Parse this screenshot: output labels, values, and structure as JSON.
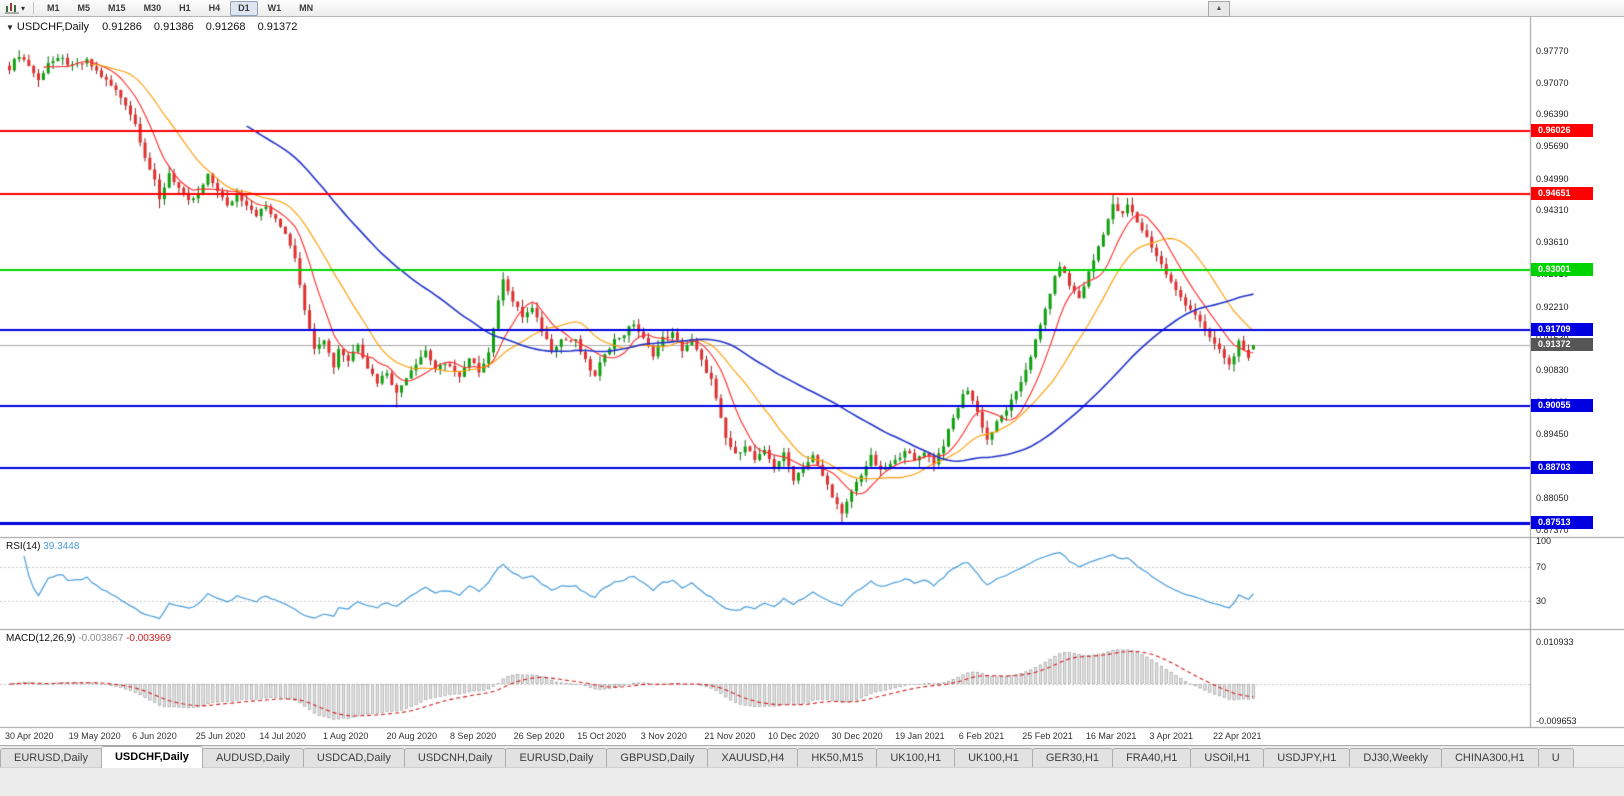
{
  "toolbar": {
    "timeframes": [
      "M1",
      "M5",
      "M15",
      "M30",
      "H1",
      "H4",
      "D1",
      "W1",
      "MN"
    ],
    "active_timeframe": "D1"
  },
  "window": {
    "collapse_marker": "▼",
    "title_symbol": "USDCHF,Daily",
    "ohlc": "0.91286 0.91386 0.91268 0.91372",
    "scroll_up_glyph": "▲"
  },
  "price_axis_ticks": [
    "0.97770",
    "0.97070",
    "0.96390",
    "0.95690",
    "0.94990",
    "0.94310",
    "0.93610",
    "0.92910",
    "0.92210",
    "0.91530",
    "0.90830",
    "0.90130",
    "0.89450",
    "0.88750",
    "0.88050",
    "0.87370"
  ],
  "levels": [
    {
      "price": 0.96026,
      "label": "0.96026",
      "color": "#ff0000",
      "width": 2
    },
    {
      "price": 0.94651,
      "label": "0.94651",
      "color": "#ff0000",
      "width": 2
    },
    {
      "price": 0.93001,
      "label": "0.93001",
      "color": "#00d400",
      "width": 2
    },
    {
      "price": 0.91709,
      "label": "0.91709",
      "color": "#0000e0",
      "width": 2
    },
    {
      "price": 0.90055,
      "label": "0.90055",
      "color": "#0000e0",
      "width": 2
    },
    {
      "price": 0.88703,
      "label": "0.88703",
      "color": "#0000e0",
      "width": 2
    },
    {
      "price": 0.87513,
      "label": "0.87513",
      "color": "#0000e0",
      "width": 3
    }
  ],
  "current_price": {
    "price": 0.91372,
    "label": "0.91372",
    "bg": "#565656"
  },
  "date_labels": [
    "30 Apr 2020",
    "19 May 2020",
    "6 Jun 2020",
    "25 Jun 2020",
    "14 Jul 2020",
    "1 Aug 2020",
    "20 Aug 2020",
    "8 Sep 2020",
    "26 Sep 2020",
    "15 Oct 2020",
    "3 Nov 2020",
    "21 Nov 2020",
    "10 Dec 2020",
    "30 Dec 2020",
    "19 Jan 2021",
    "6 Feb 2021",
    "25 Feb 2021",
    "16 Mar 2021",
    "3 Apr 2021",
    "22 Apr 2021"
  ],
  "indicators": {
    "rsi": {
      "name": "RSI(14)",
      "value": "39.3448",
      "axis": [
        "100",
        "70",
        "30"
      ],
      "guide_levels": [
        70,
        30
      ]
    },
    "macd": {
      "name": "MACD(12,26,9)",
      "value_main": "-0.003867",
      "value_signal": "-0.003969",
      "axis_max": "0.010933",
      "axis_min": "-0.009653"
    }
  },
  "tabs": [
    {
      "label": "EURUSD,Daily"
    },
    {
      "label": "USDCHF,Daily",
      "active": true
    },
    {
      "label": "AUDUSD,Daily"
    },
    {
      "label": "USDCAD,Daily"
    },
    {
      "label": "USDCNH,Daily"
    },
    {
      "label": "EURUSD,Daily"
    },
    {
      "label": "GBPUSD,Daily"
    },
    {
      "label": "XAUUSD,H4"
    },
    {
      "label": "HK50,M15"
    },
    {
      "label": "UK100,H1"
    },
    {
      "label": "UK100,H1"
    },
    {
      "label": "GER30,H1"
    },
    {
      "label": "FRA40,H1"
    },
    {
      "label": "USOil,H1"
    },
    {
      "label": "USDJPY,H1"
    },
    {
      "label": "DJ30,Weekly"
    },
    {
      "label": "CHINA300,H1"
    },
    {
      "label": "U"
    }
  ],
  "colors": {
    "up": "#0fa00f",
    "up_border": "#0a6e0a",
    "down": "#e03030",
    "down_border": "#8f1d1d",
    "rsi_line": "#4a9edd",
    "macd_hist": "#e3e3e3",
    "macd_hist_border": "#9f9f9f",
    "macd_signal": "#d22020",
    "current_line": "#aaaaaa",
    "guide_dotted": "#c8c8c8"
  },
  "chart_data": {
    "type": "candlestick",
    "symbol": "USDCHF",
    "timeframe": "Daily",
    "num_candles": 258,
    "price_anchors": [
      [
        0,
        0.974
      ],
      [
        2,
        0.9768
      ],
      [
        4,
        0.9745
      ],
      [
        6,
        0.9712
      ],
      [
        8,
        0.9752
      ],
      [
        11,
        0.9758
      ],
      [
        13,
        0.9742
      ],
      [
        16,
        0.9754
      ],
      [
        19,
        0.9722
      ],
      [
        22,
        0.969
      ],
      [
        24,
        0.9662
      ],
      [
        26,
        0.9618
      ],
      [
        28,
        0.9548
      ],
      [
        30,
        0.9492
      ],
      [
        31,
        0.9452
      ],
      [
        33,
        0.9512
      ],
      [
        35,
        0.9478
      ],
      [
        37,
        0.9448
      ],
      [
        39,
        0.9465
      ],
      [
        41,
        0.9505
      ],
      [
        43,
        0.9475
      ],
      [
        45,
        0.9438
      ],
      [
        47,
        0.9465
      ],
      [
        49,
        0.9445
      ],
      [
        51,
        0.9422
      ],
      [
        53,
        0.9438
      ],
      [
        55,
        0.9408
      ],
      [
        57,
        0.9382
      ],
      [
        59,
        0.933
      ],
      [
        60,
        0.9272
      ],
      [
        61,
        0.9218
      ],
      [
        62,
        0.917
      ],
      [
        63,
        0.9135
      ],
      [
        65,
        0.9152
      ],
      [
        66,
        0.912
      ],
      [
        67,
        0.9092
      ],
      [
        68,
        0.913
      ],
      [
        70,
        0.9105
      ],
      [
        72,
        0.9142
      ],
      [
        74,
        0.909
      ],
      [
        76,
        0.9058
      ],
      [
        78,
        0.908
      ],
      [
        80,
        0.9032
      ],
      [
        82,
        0.907
      ],
      [
        84,
        0.91
      ],
      [
        86,
        0.9126
      ],
      [
        88,
        0.9086
      ],
      [
        91,
        0.9096
      ],
      [
        93,
        0.9066
      ],
      [
        95,
        0.9106
      ],
      [
        97,
        0.9082
      ],
      [
        99,
        0.9122
      ],
      [
        101,
        0.923
      ],
      [
        102,
        0.9285
      ],
      [
        104,
        0.9232
      ],
      [
        106,
        0.92
      ],
      [
        108,
        0.9216
      ],
      [
        110,
        0.917
      ],
      [
        112,
        0.9128
      ],
      [
        114,
        0.915
      ],
      [
        117,
        0.9146
      ],
      [
        119,
        0.9102
      ],
      [
        121,
        0.9068
      ],
      [
        123,
        0.9122
      ],
      [
        125,
        0.9148
      ],
      [
        127,
        0.9162
      ],
      [
        129,
        0.9185
      ],
      [
        131,
        0.915
      ],
      [
        133,
        0.9118
      ],
      [
        135,
        0.9152
      ],
      [
        137,
        0.9162
      ],
      [
        139,
        0.9128
      ],
      [
        141,
        0.9148
      ],
      [
        143,
        0.9102
      ],
      [
        145,
        0.9062
      ],
      [
        147,
        0.8975
      ],
      [
        148,
        0.8935
      ],
      [
        150,
        0.8898
      ],
      [
        152,
        0.8922
      ],
      [
        154,
        0.8888
      ],
      [
        156,
        0.8905
      ],
      [
        158,
        0.8875
      ],
      [
        160,
        0.89
      ],
      [
        162,
        0.8848
      ],
      [
        164,
        0.8872
      ],
      [
        166,
        0.8896
      ],
      [
        168,
        0.8854
      ],
      [
        170,
        0.8812
      ],
      [
        172,
        0.8768
      ],
      [
        174,
        0.882
      ],
      [
        176,
        0.8858
      ],
      [
        178,
        0.8894
      ],
      [
        180,
        0.8862
      ],
      [
        183,
        0.8885
      ],
      [
        185,
        0.8912
      ],
      [
        187,
        0.8885
      ],
      [
        189,
        0.8908
      ],
      [
        191,
        0.8882
      ],
      [
        193,
        0.8922
      ],
      [
        195,
        0.8978
      ],
      [
        197,
        0.9028
      ],
      [
        198,
        0.9042
      ],
      [
        200,
        0.8992
      ],
      [
        202,
        0.8932
      ],
      [
        204,
        0.8968
      ],
      [
        206,
        0.8998
      ],
      [
        208,
        0.9032
      ],
      [
        209,
        0.9058
      ],
      [
        211,
        0.9115
      ],
      [
        213,
        0.9178
      ],
      [
        215,
        0.9252
      ],
      [
        217,
        0.9312
      ],
      [
        219,
        0.9268
      ],
      [
        221,
        0.924
      ],
      [
        224,
        0.9322
      ],
      [
        226,
        0.9382
      ],
      [
        228,
        0.944
      ],
      [
        230,
        0.942
      ],
      [
        231,
        0.9442
      ],
      [
        233,
        0.9405
      ],
      [
        235,
        0.9372
      ],
      [
        237,
        0.9332
      ],
      [
        239,
        0.9292
      ],
      [
        241,
        0.9255
      ],
      [
        243,
        0.9228
      ],
      [
        245,
        0.9205
      ],
      [
        247,
        0.9168
      ],
      [
        249,
        0.914
      ],
      [
        251,
        0.9112
      ],
      [
        252,
        0.9094
      ],
      [
        254,
        0.9142
      ],
      [
        255,
        0.9122
      ],
      [
        256,
        0.9106
      ],
      [
        257,
        0.9137
      ]
    ],
    "key_extremes": [
      {
        "i": 2,
        "h": 0.9778
      },
      {
        "i": 6,
        "l": 0.9698
      },
      {
        "i": 31,
        "l": 0.9435
      },
      {
        "i": 80,
        "l": 0.9002
      },
      {
        "i": 102,
        "h": 0.9296
      },
      {
        "i": 129,
        "h": 0.9192
      },
      {
        "i": 172,
        "l": 0.87513
      },
      {
        "i": 198,
        "h": 0.9046
      },
      {
        "i": 228,
        "h": 0.94655
      },
      {
        "i": 252,
        "l": 0.9086
      }
    ],
    "last_candle": {
      "open": 0.91286,
      "high": 0.91386,
      "low": 0.91268,
      "close": 0.91372
    },
    "moving_averages": [
      {
        "name": "fast",
        "period": 8,
        "color": "#ff2a2a"
      },
      {
        "name": "medium",
        "period": 18,
        "color": "#ff9c00"
      },
      {
        "name": "slow",
        "period": 50,
        "color": "#2233cc"
      }
    ]
  }
}
